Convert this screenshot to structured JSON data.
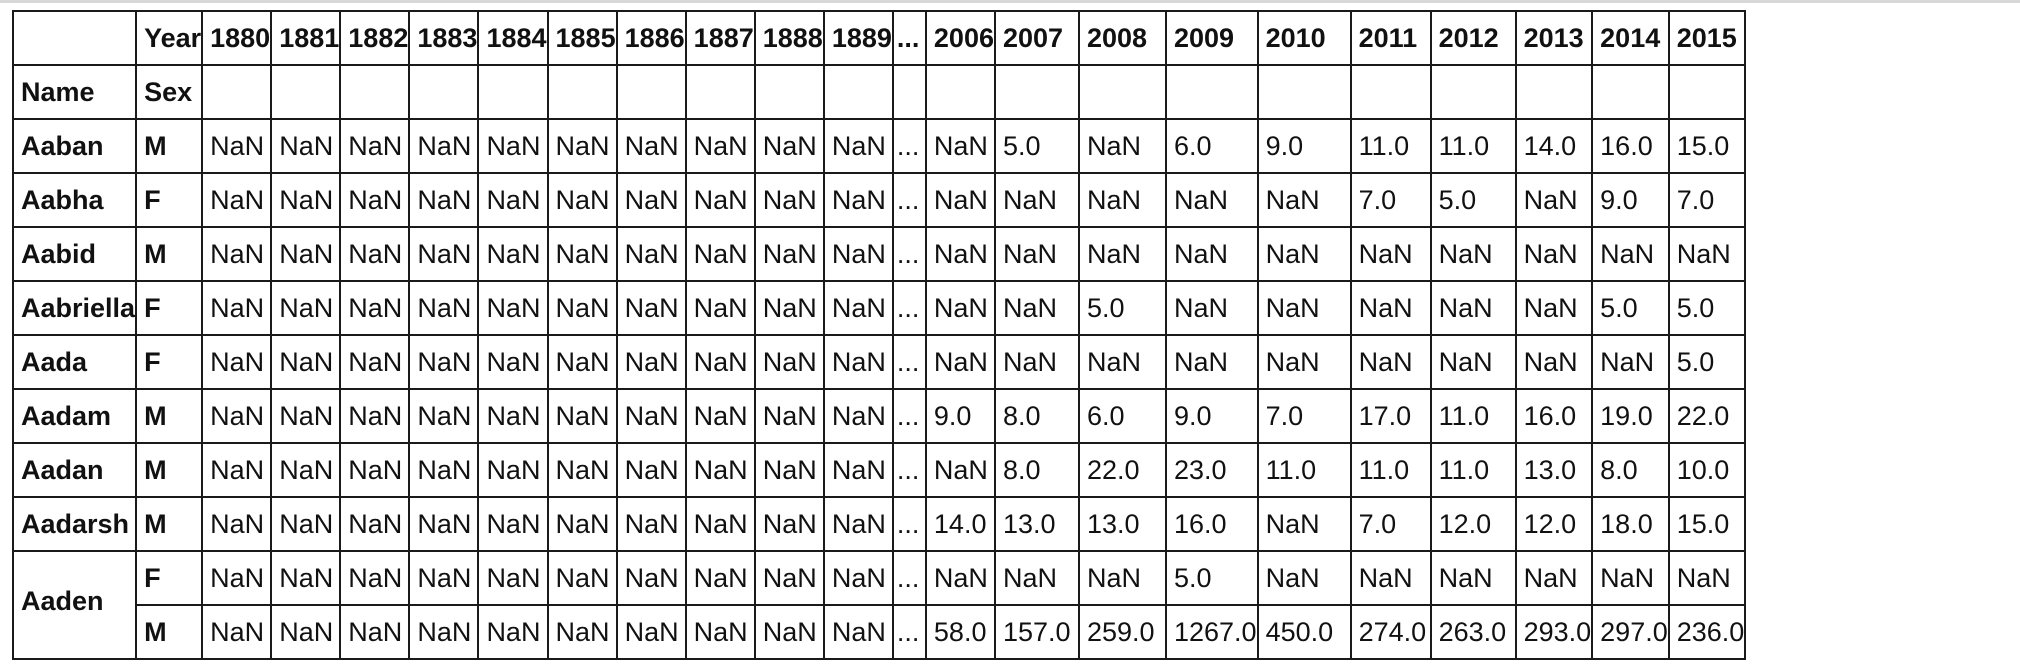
{
  "table": {
    "index_names": {
      "name": "Name",
      "sex": "Sex"
    },
    "columns_name": "Year",
    "columns": [
      "1880",
      "1881",
      "1882",
      "1883",
      "1884",
      "1885",
      "1886",
      "1887",
      "1888",
      "1889",
      "...",
      "2006",
      "2007",
      "2008",
      "2009",
      "2010",
      "2011",
      "2012",
      "2013",
      "2014",
      "2015"
    ],
    "rows": [
      {
        "name": "Aaban",
        "sex": "M",
        "values": [
          "NaN",
          "NaN",
          "NaN",
          "NaN",
          "NaN",
          "NaN",
          "NaN",
          "NaN",
          "NaN",
          "NaN",
          "...",
          "NaN",
          "5.0",
          "NaN",
          "6.0",
          "9.0",
          "11.0",
          "11.0",
          "14.0",
          "16.0",
          "15.0"
        ]
      },
      {
        "name": "Aabha",
        "sex": "F",
        "values": [
          "NaN",
          "NaN",
          "NaN",
          "NaN",
          "NaN",
          "NaN",
          "NaN",
          "NaN",
          "NaN",
          "NaN",
          "...",
          "NaN",
          "NaN",
          "NaN",
          "NaN",
          "NaN",
          "7.0",
          "5.0",
          "NaN",
          "9.0",
          "7.0"
        ]
      },
      {
        "name": "Aabid",
        "sex": "M",
        "values": [
          "NaN",
          "NaN",
          "NaN",
          "NaN",
          "NaN",
          "NaN",
          "NaN",
          "NaN",
          "NaN",
          "NaN",
          "...",
          "NaN",
          "NaN",
          "NaN",
          "NaN",
          "NaN",
          "NaN",
          "NaN",
          "NaN",
          "NaN",
          "NaN"
        ]
      },
      {
        "name": "Aabriella",
        "sex": "F",
        "values": [
          "NaN",
          "NaN",
          "NaN",
          "NaN",
          "NaN",
          "NaN",
          "NaN",
          "NaN",
          "NaN",
          "NaN",
          "...",
          "NaN",
          "NaN",
          "5.0",
          "NaN",
          "NaN",
          "NaN",
          "NaN",
          "NaN",
          "5.0",
          "5.0"
        ]
      },
      {
        "name": "Aada",
        "sex": "F",
        "values": [
          "NaN",
          "NaN",
          "NaN",
          "NaN",
          "NaN",
          "NaN",
          "NaN",
          "NaN",
          "NaN",
          "NaN",
          "...",
          "NaN",
          "NaN",
          "NaN",
          "NaN",
          "NaN",
          "NaN",
          "NaN",
          "NaN",
          "NaN",
          "5.0"
        ]
      },
      {
        "name": "Aadam",
        "sex": "M",
        "values": [
          "NaN",
          "NaN",
          "NaN",
          "NaN",
          "NaN",
          "NaN",
          "NaN",
          "NaN",
          "NaN",
          "NaN",
          "...",
          "9.0",
          "8.0",
          "6.0",
          "9.0",
          "7.0",
          "17.0",
          "11.0",
          "16.0",
          "19.0",
          "22.0"
        ]
      },
      {
        "name": "Aadan",
        "sex": "M",
        "values": [
          "NaN",
          "NaN",
          "NaN",
          "NaN",
          "NaN",
          "NaN",
          "NaN",
          "NaN",
          "NaN",
          "NaN",
          "...",
          "NaN",
          "8.0",
          "22.0",
          "23.0",
          "11.0",
          "11.0",
          "11.0",
          "13.0",
          "8.0",
          "10.0"
        ]
      },
      {
        "name": "Aadarsh",
        "sex": "M",
        "values": [
          "NaN",
          "NaN",
          "NaN",
          "NaN",
          "NaN",
          "NaN",
          "NaN",
          "NaN",
          "NaN",
          "NaN",
          "...",
          "14.0",
          "13.0",
          "13.0",
          "16.0",
          "NaN",
          "7.0",
          "12.0",
          "12.0",
          "18.0",
          "15.0"
        ]
      },
      {
        "name": "Aaden",
        "sex": "F",
        "values": [
          "NaN",
          "NaN",
          "NaN",
          "NaN",
          "NaN",
          "NaN",
          "NaN",
          "NaN",
          "NaN",
          "NaN",
          "...",
          "NaN",
          "NaN",
          "NaN",
          "5.0",
          "NaN",
          "NaN",
          "NaN",
          "NaN",
          "NaN",
          "NaN"
        ]
      },
      {
        "name": "",
        "sex": "M",
        "values": [
          "NaN",
          "NaN",
          "NaN",
          "NaN",
          "NaN",
          "NaN",
          "NaN",
          "NaN",
          "NaN",
          "NaN",
          "...",
          "58.0",
          "157.0",
          "259.0",
          "1267.0",
          "450.0",
          "274.0",
          "263.0",
          "293.0",
          "297.0",
          "236.0"
        ]
      }
    ]
  }
}
